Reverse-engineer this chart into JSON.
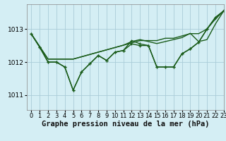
{
  "title": "",
  "xlabel": "Graphe pression niveau de la mer (hPa)",
  "ylabel": "",
  "bg_color": "#d4eef4",
  "grid_color": "#aaccd8",
  "line_color": "#1a5c1a",
  "marker_color": "#1a5c1a",
  "xlim": [
    -0.5,
    23
  ],
  "ylim": [
    1010.55,
    1013.75
  ],
  "yticks": [
    1011,
    1012,
    1013
  ],
  "xticks": [
    0,
    1,
    2,
    3,
    4,
    5,
    6,
    7,
    8,
    9,
    10,
    11,
    12,
    13,
    14,
    15,
    16,
    17,
    18,
    19,
    20,
    21,
    22,
    23
  ],
  "series": [
    {
      "y": [
        1012.85,
        1012.45,
        1012.0,
        1012.0,
        1011.85,
        1011.15,
        1011.7,
        1011.95,
        1012.2,
        1012.05,
        1012.3,
        1012.35,
        1012.65,
        1012.55,
        1012.5,
        1011.85,
        1011.85,
        1011.85,
        1012.25,
        1012.4,
        1012.6,
        1013.0,
        1013.35,
        1013.55
      ],
      "marker": true,
      "linewidth": 1.0
    },
    {
      "y": [
        1012.85,
        1012.47,
        1012.09,
        1012.09,
        1012.09,
        1012.09,
        1012.16,
        1012.23,
        1012.3,
        1012.37,
        1012.44,
        1012.51,
        1012.58,
        1012.65,
        1012.65,
        1012.65,
        1012.72,
        1012.72,
        1012.79,
        1012.86,
        1012.86,
        1013.0,
        1013.3,
        1013.55
      ],
      "marker": false,
      "linewidth": 1.0
    },
    {
      "y": [
        1012.85,
        1012.47,
        1012.09,
        1012.09,
        1012.09,
        1012.09,
        1012.16,
        1012.23,
        1012.3,
        1012.37,
        1012.44,
        1012.51,
        1012.62,
        1012.68,
        1012.62,
        1012.56,
        1012.62,
        1012.68,
        1012.74,
        1012.87,
        1012.62,
        1012.68,
        1013.15,
        1013.55
      ],
      "marker": false,
      "linewidth": 1.0
    },
    {
      "y": [
        1012.85,
        1012.45,
        1012.0,
        1012.0,
        1011.85,
        1011.15,
        1011.7,
        1011.95,
        1012.2,
        1012.05,
        1012.3,
        1012.35,
        1012.55,
        1012.5,
        1012.5,
        1011.85,
        1011.85,
        1011.85,
        1012.25,
        1012.4,
        1012.6,
        1013.0,
        1013.35,
        1013.55
      ],
      "marker": true,
      "linewidth": 1.0
    }
  ],
  "marker_size": 3.5,
  "xlabel_fontsize": 7.5,
  "tick_fontsize": 6.5
}
